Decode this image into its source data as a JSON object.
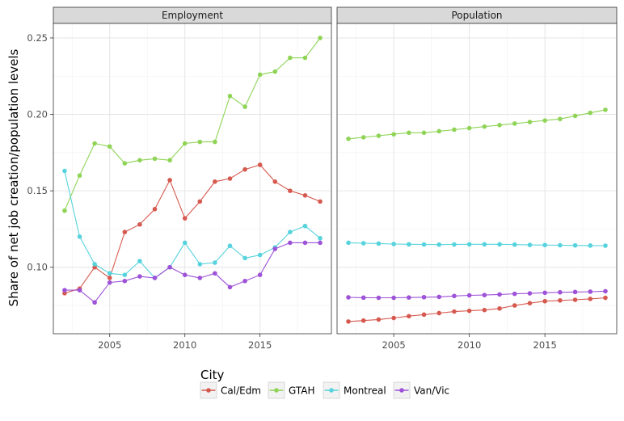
{
  "chart_data": {
    "type": "line",
    "ylabel": "Share of net job creation/population levels",
    "xlabel": "",
    "x_ticks": [
      2005,
      2010,
      2015
    ],
    "y_ticks": [
      0.1,
      0.15,
      0.2,
      0.25
    ],
    "y_tick_labels": [
      "0.10",
      "0.15",
      "0.20",
      "0.25"
    ],
    "xlim": [
      2001.25,
      2019.75
    ],
    "ylim": [
      0.0565,
      0.2595
    ],
    "grid": true,
    "legend_title": "City",
    "legend_position": "bottom",
    "x": [
      2002,
      2003,
      2004,
      2005,
      2006,
      2007,
      2008,
      2009,
      2010,
      2011,
      2012,
      2013,
      2014,
      2015,
      2016,
      2017,
      2018,
      2019
    ],
    "facets": [
      {
        "title": "Employment",
        "series": [
          {
            "name": "Cal/Edm",
            "color": "#d6594f",
            "values": [
              0.083,
              0.086,
              0.1,
              0.093,
              0.123,
              0.128,
              0.138,
              0.157,
              0.132,
              0.143,
              0.156,
              0.158,
              0.164,
              0.167,
              0.156,
              0.15,
              0.147,
              0.143
            ]
          },
          {
            "name": "GTAH",
            "color": "#8fd457",
            "values": [
              0.137,
              0.16,
              0.181,
              0.179,
              0.168,
              0.17,
              0.171,
              0.17,
              0.181,
              0.182,
              0.182,
              0.212,
              0.205,
              0.226,
              0.228,
              0.237,
              0.237,
              0.25
            ]
          },
          {
            "name": "Montreal",
            "color": "#56d3dc",
            "values": [
              0.163,
              0.12,
              0.102,
              0.096,
              0.095,
              0.104,
              0.093,
              0.1,
              0.116,
              0.102,
              0.103,
              0.114,
              0.106,
              0.108,
              0.113,
              0.123,
              0.127,
              0.119
            ]
          },
          {
            "name": "Van/Vic",
            "color": "#9d52d8",
            "values": [
              0.085,
              0.085,
              0.077,
              0.09,
              0.091,
              0.094,
              0.093,
              0.1,
              0.095,
              0.093,
              0.096,
              0.087,
              0.091,
              0.095,
              0.112,
              0.116,
              0.116,
              0.116
            ]
          }
        ]
      },
      {
        "title": "Population",
        "series": [
          {
            "name": "Cal/Edm",
            "color": "#d6594f",
            "values": [
              0.0645,
              0.0651,
              0.0658,
              0.0668,
              0.068,
              0.069,
              0.07,
              0.071,
              0.0715,
              0.072,
              0.073,
              0.075,
              0.0765,
              0.0778,
              0.0783,
              0.0787,
              0.0793,
              0.08
            ]
          },
          {
            "name": "GTAH",
            "color": "#8fd457",
            "values": [
              0.184,
              0.185,
              0.186,
              0.187,
              0.188,
              0.188,
              0.189,
              0.19,
              0.191,
              0.192,
              0.193,
              0.194,
              0.195,
              0.196,
              0.197,
              0.199,
              0.201,
              0.203
            ]
          },
          {
            "name": "Montreal",
            "color": "#56d3dc",
            "values": [
              0.116,
              0.1157,
              0.1155,
              0.1152,
              0.115,
              0.1149,
              0.1148,
              0.1149,
              0.115,
              0.115,
              0.115,
              0.1148,
              0.1146,
              0.1145,
              0.1144,
              0.1143,
              0.1142,
              0.1141
            ]
          },
          {
            "name": "Van/Vic",
            "color": "#9d52d8",
            "values": [
              0.0803,
              0.0801,
              0.08,
              0.08,
              0.0802,
              0.0804,
              0.0806,
              0.0812,
              0.0816,
              0.0818,
              0.0822,
              0.0826,
              0.0829,
              0.0833,
              0.0836,
              0.0838,
              0.084,
              0.0843
            ]
          }
        ]
      }
    ],
    "legend": [
      {
        "name": "Cal/Edm",
        "color": "#d6594f"
      },
      {
        "name": "GTAH",
        "color": "#8fd457"
      },
      {
        "name": "Montreal",
        "color": "#56d3dc"
      },
      {
        "name": "Van/Vic",
        "color": "#9d52d8"
      }
    ]
  }
}
